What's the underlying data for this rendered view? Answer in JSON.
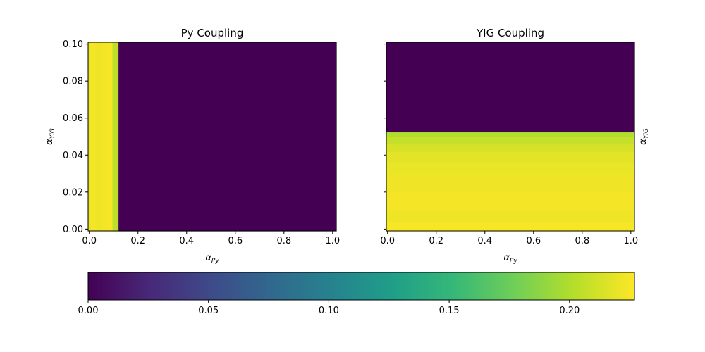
{
  "colormap": {
    "name": "viridis",
    "stops": [
      "#440154",
      "#482878",
      "#3e4a89",
      "#31688e",
      "#26828e",
      "#1f9e89",
      "#35b779",
      "#6ece58",
      "#b5de2b",
      "#fde725"
    ]
  },
  "chart_data": [
    {
      "type": "heatmap",
      "title": "Py Coupling",
      "xlabel": {
        "symbol": "α",
        "sub": "Py"
      },
      "ylabel": {
        "symbol": "α",
        "sub": "YIG"
      },
      "xlim": [
        -0.005,
        1.015
      ],
      "ylim": [
        -0.001,
        0.101
      ],
      "xticks": [
        0.0,
        0.2,
        0.4,
        0.6,
        0.8,
        1.0
      ],
      "xtick_labels": [
        "0.0",
        "0.2",
        "0.4",
        "0.6",
        "0.8",
        "1.0"
      ],
      "yticks": [
        0.0,
        0.02,
        0.04,
        0.06,
        0.08,
        0.1
      ],
      "ytick_labels": [
        "0.00",
        "0.02",
        "0.04",
        "0.06",
        "0.08",
        "0.10"
      ],
      "ylabel_side": "left",
      "show_ytick_labels": true,
      "region_orientation": "vertical",
      "regions": [
        {
          "from": -0.005,
          "to": 0.0,
          "value": 0.218
        },
        {
          "from": 0.0,
          "to": 0.025,
          "value": 0.224
        },
        {
          "from": 0.025,
          "to": 0.05,
          "value": 0.222
        },
        {
          "from": 0.05,
          "to": 0.075,
          "value": 0.224
        },
        {
          "from": 0.075,
          "to": 0.095,
          "value": 0.225
        },
        {
          "from": 0.095,
          "to": 0.12,
          "value": 0.205
        },
        {
          "from": 0.12,
          "to": 1.015,
          "value": 0.0
        }
      ]
    },
    {
      "type": "heatmap",
      "title": "YIG Coupling",
      "xlabel": {
        "symbol": "α",
        "sub": "Py"
      },
      "ylabel": {
        "symbol": "α",
        "sub": "YIG"
      },
      "xlim": [
        -0.005,
        1.015
      ],
      "ylim": [
        -0.001,
        0.101
      ],
      "xticks": [
        0.0,
        0.2,
        0.4,
        0.6,
        0.8,
        1.0
      ],
      "xtick_labels": [
        "0.0",
        "0.2",
        "0.4",
        "0.6",
        "0.8",
        "1.0"
      ],
      "yticks": [
        0.0,
        0.02,
        0.04,
        0.06,
        0.08,
        0.1
      ],
      "ytick_labels": [
        "",
        "",
        "",
        "",
        "",
        ""
      ],
      "ylabel_side": "right",
      "show_ytick_labels": false,
      "region_orientation": "horizontal",
      "regions": [
        {
          "from": -0.001,
          "to": 0.004,
          "value": 0.225
        },
        {
          "from": 0.004,
          "to": 0.01,
          "value": 0.222
        },
        {
          "from": 0.01,
          "to": 0.02,
          "value": 0.224
        },
        {
          "from": 0.02,
          "to": 0.03,
          "value": 0.222
        },
        {
          "from": 0.03,
          "to": 0.036,
          "value": 0.22
        },
        {
          "from": 0.036,
          "to": 0.042,
          "value": 0.218
        },
        {
          "from": 0.042,
          "to": 0.046,
          "value": 0.213
        },
        {
          "from": 0.046,
          "to": 0.05,
          "value": 0.207
        },
        {
          "from": 0.05,
          "to": 0.0525,
          "value": 0.2
        },
        {
          "from": 0.0525,
          "to": 0.101,
          "value": 0.0
        }
      ]
    }
  ],
  "colorbar": {
    "vmin": 0.0,
    "vmax": 0.227,
    "ticks": [
      0.0,
      0.05,
      0.1,
      0.15,
      0.2
    ],
    "tick_labels": [
      "0.00",
      "0.05",
      "0.10",
      "0.15",
      "0.20"
    ],
    "orientation": "horizontal",
    "placement": "bottom"
  }
}
